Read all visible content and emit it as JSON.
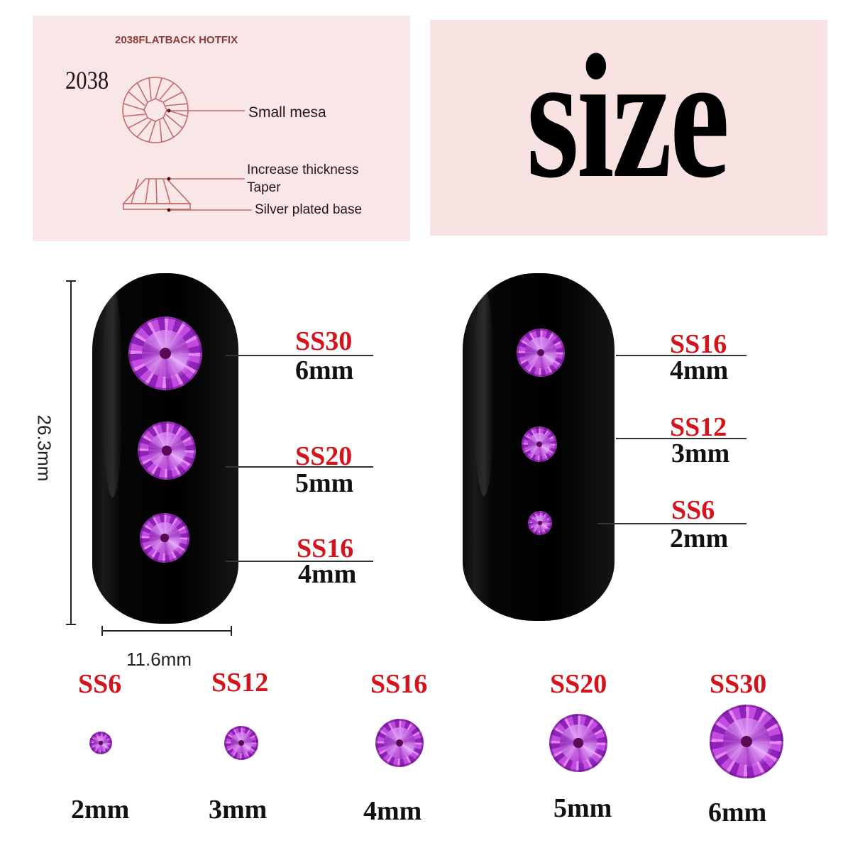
{
  "diagram_panel": {
    "header": "2038FLATBACK HOTFIX",
    "model": "2038",
    "labels": {
      "small_mesa": "Small mesa",
      "increase_thickness": "Increase thickness",
      "taper": "Taper",
      "silver_base": "Silver plated base"
    }
  },
  "size_panel": {
    "title": "size"
  },
  "dimensions": {
    "height": "26.3mm",
    "width": "11.6mm"
  },
  "nail_left": {
    "items": [
      {
        "code": "SS30",
        "size": "6mm"
      },
      {
        "code": "SS20",
        "size": "5mm"
      },
      {
        "code": "SS16",
        "size": "4mm"
      }
    ]
  },
  "nail_right": {
    "items": [
      {
        "code": "SS16",
        "size": "4mm"
      },
      {
        "code": "SS12",
        "size": "3mm"
      },
      {
        "code": "SS6",
        "size": "2mm"
      }
    ]
  },
  "size_row": [
    {
      "code": "SS6",
      "size": "2mm"
    },
    {
      "code": "SS12",
      "size": "3mm"
    },
    {
      "code": "SS16",
      "size": "4mm"
    },
    {
      "code": "SS20",
      "size": "5mm"
    },
    {
      "code": "SS30",
      "size": "6mm"
    }
  ],
  "colors": {
    "panel": "#f9e6e6",
    "code_red": "#d4141c",
    "gem": "#b43ad8",
    "diagram_line": "#c46a6a"
  }
}
